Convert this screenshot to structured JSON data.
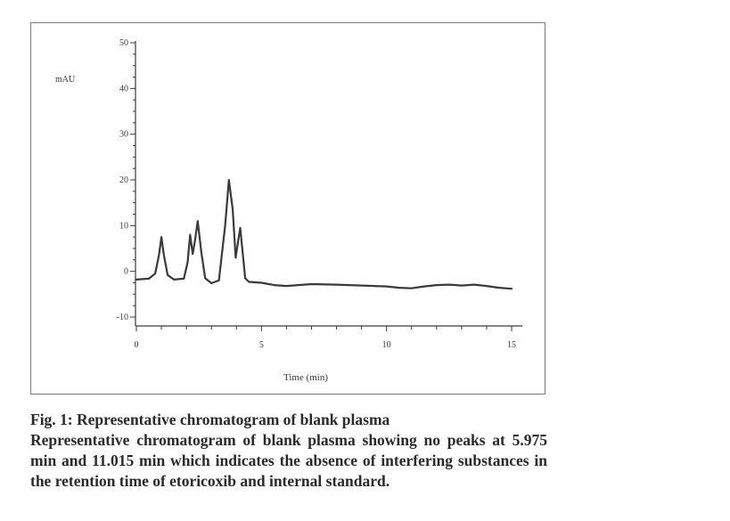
{
  "chart_data": {
    "type": "line",
    "title": "",
    "ylabel": "mAU",
    "xlabel": "Time (min)",
    "xlim": [
      0,
      15
    ],
    "ylim": [
      -10,
      50
    ],
    "y_ticks": [
      {
        "value": 50,
        "label": "50"
      },
      {
        "value": 40,
        "label": "40"
      },
      {
        "value": 30,
        "label": "30"
      },
      {
        "value": 20,
        "label": "20"
      },
      {
        "value": 10,
        "label": "10"
      },
      {
        "value": 0,
        "label": "0"
      },
      {
        "value": -10,
        "label": "-10"
      }
    ],
    "x_ticks": [
      {
        "value": 0,
        "label": "0"
      },
      {
        "value": 5,
        "label": "5"
      },
      {
        "value": 10,
        "label": "10"
      },
      {
        "value": 15,
        "label": "15"
      }
    ],
    "grid": false,
    "line_color": "#3a3a3a",
    "series": [
      {
        "x": [
          0.0,
          0.5,
          0.75,
          0.9,
          1.0,
          1.1,
          1.25,
          1.5,
          1.9,
          2.05,
          2.15,
          2.25,
          2.35,
          2.45,
          2.6,
          2.75,
          3.0,
          3.3,
          3.55,
          3.7,
          3.85,
          3.97,
          4.05,
          4.15,
          4.25,
          4.35,
          4.5,
          5.0,
          5.5,
          6.0,
          7.0,
          8.0,
          9.0,
          10.0,
          10.5,
          11.0,
          11.5,
          12.0,
          12.5,
          13.0,
          13.5,
          14.0,
          14.5,
          15.0
        ],
        "y": [
          -1.8,
          -1.6,
          -0.5,
          3.5,
          7.5,
          3.5,
          -0.8,
          -1.8,
          -1.6,
          2.0,
          8.0,
          3.8,
          7.0,
          11.0,
          4.0,
          -1.5,
          -2.6,
          -2.0,
          10.0,
          20.0,
          13.5,
          3.0,
          6.0,
          9.5,
          4.0,
          -1.5,
          -2.3,
          -2.5,
          -3.0,
          -3.2,
          -2.8,
          -2.9,
          -3.1,
          -3.3,
          -3.6,
          -3.7,
          -3.3,
          -3.0,
          -2.9,
          -3.1,
          -2.9,
          -3.2,
          -3.6,
          -3.8
        ]
      }
    ]
  },
  "caption": {
    "title": "Fig. 1: Representative chromatogram of blank plasma",
    "body": "Representative chromatogram of blank plasma showing no peaks at 5.975 min and 11.015 min which indicates the absence of interfering substances in the retention time of etoricoxib and internal standard."
  }
}
